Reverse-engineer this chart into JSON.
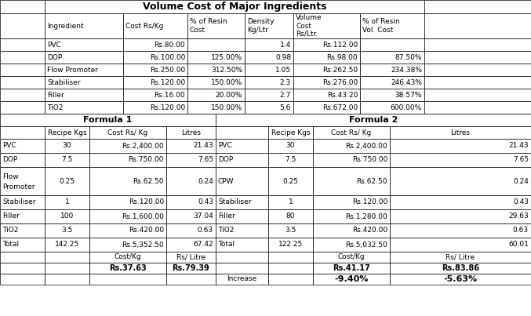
{
  "title": "Volume Cost of Major Ingredients",
  "top_headers": [
    "Ingredient",
    "Cost Rs/Kg",
    "% of Resin\nCost",
    "Density\nKg/Ltr",
    "Volume\nCost\nRs/Ltr.",
    "% of Resin\nVol. Cost"
  ],
  "top_rows": [
    [
      "PVC",
      "Rs.80.00",
      "",
      "1.4",
      "Rs.112.00",
      ""
    ],
    [
      "DOP",
      "Rs.100.00",
      "125.00%",
      "0.98",
      "Rs.98.00",
      "87.50%"
    ],
    [
      "Flow Promoter",
      "Rs.250.00",
      "312.50%",
      "1.05",
      "Rs.262.50",
      "234.38%"
    ],
    [
      "Stabiliser",
      "Rs.120.00",
      "150.00%",
      "2.3",
      "Rs.276.00",
      "246.43%"
    ],
    [
      "Filler",
      "Rs.16.00",
      "20.00%",
      "2.7",
      "Rs.43.20",
      "38.57%"
    ],
    [
      "TiO2",
      "Rs.120.00",
      "150.00%",
      "5.6",
      "Rs.672.00",
      "600.00%"
    ]
  ],
  "formula1_header": "Formula 1",
  "formula2_header": "Formula 2",
  "formula1_rows": [
    [
      "PVC",
      "30",
      "Rs.2,400.00",
      "21.43"
    ],
    [
      "DOP",
      "7.5",
      "Rs.750.00",
      "7.65"
    ],
    [
      "Flow\nPromoter",
      "0.25",
      "Rs.62.50",
      "0.24"
    ],
    [
      "Stabiliser",
      "1",
      "Rs.120.00",
      "0.43"
    ],
    [
      "Filler",
      "100",
      "Rs.1,600.00",
      "37.04"
    ],
    [
      "TiO2",
      "3.5",
      "Rs.420.00",
      "0.63"
    ],
    [
      "Total",
      "142.25",
      "Rs.5,352.50",
      "67.42"
    ]
  ],
  "formula2_rows": [
    [
      "PVC",
      "30",
      "Rs.2,400.00",
      "21.43"
    ],
    [
      "DOP",
      "7.5",
      "Rs.750.00",
      "7.65"
    ],
    [
      "CPW",
      "0.25",
      "Rs.62.50",
      "0.24"
    ],
    [
      "Stabiliser",
      "1",
      "Rs.120.00",
      "0.43"
    ],
    [
      "Filler",
      "80",
      "Rs.1,280.00",
      "29.63"
    ],
    [
      "TiO2",
      "3.5",
      "Rs.420.00",
      "0.63"
    ],
    [
      "Total",
      "122.25",
      "Rs.5,032.50",
      "60.01"
    ]
  ],
  "formula1_costs_label": [
    "Cost/Kg",
    "Rs/ Litre"
  ],
  "formula1_costs_value": [
    "Rs.37.63",
    "Rs.79.39"
  ],
  "formula2_costs_label": [
    "Cost/Kg",
    "Rs/ Litre"
  ],
  "formula2_costs_value": [
    "Rs.41.17",
    "Rs.83.86"
  ],
  "increase_label": "Increase",
  "increase_values": [
    "-9.40%",
    "-5.63%"
  ]
}
